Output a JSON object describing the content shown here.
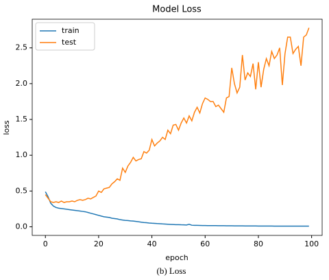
{
  "chart_data": {
    "type": "line",
    "title": "Model Loss",
    "xlabel": "epoch",
    "ylabel": "loss",
    "caption": "(b) Loss",
    "x": [
      0,
      1,
      2,
      3,
      4,
      5,
      6,
      7,
      8,
      9,
      10,
      11,
      12,
      13,
      14,
      15,
      16,
      17,
      18,
      19,
      20,
      21,
      22,
      23,
      24,
      25,
      26,
      27,
      28,
      29,
      30,
      31,
      32,
      33,
      34,
      35,
      36,
      37,
      38,
      39,
      40,
      41,
      42,
      43,
      44,
      45,
      46,
      47,
      48,
      49,
      50,
      51,
      52,
      53,
      54,
      55,
      56,
      57,
      58,
      59,
      60,
      61,
      62,
      63,
      64,
      65,
      66,
      67,
      68,
      69,
      70,
      71,
      72,
      73,
      74,
      75,
      76,
      77,
      78,
      79,
      80,
      81,
      82,
      83,
      84,
      85,
      86,
      87,
      88,
      89,
      90,
      91,
      92,
      93,
      94,
      95,
      96,
      97,
      98,
      99
    ],
    "series": [
      {
        "name": "train",
        "color": "#1f77b4",
        "values": [
          0.49,
          0.42,
          0.33,
          0.29,
          0.27,
          0.26,
          0.255,
          0.25,
          0.245,
          0.24,
          0.235,
          0.23,
          0.225,
          0.22,
          0.215,
          0.21,
          0.2,
          0.19,
          0.18,
          0.17,
          0.16,
          0.15,
          0.14,
          0.135,
          0.13,
          0.12,
          0.115,
          0.11,
          0.1,
          0.095,
          0.09,
          0.087,
          0.083,
          0.08,
          0.075,
          0.07,
          0.065,
          0.06,
          0.057,
          0.053,
          0.05,
          0.048,
          0.045,
          0.043,
          0.04,
          0.038,
          0.036,
          0.034,
          0.032,
          0.03,
          0.03,
          0.028,
          0.027,
          0.025,
          0.035,
          0.022,
          0.02,
          0.02,
          0.019,
          0.018,
          0.018,
          0.017,
          0.017,
          0.016,
          0.016,
          0.015,
          0.015,
          0.015,
          0.014,
          0.014,
          0.014,
          0.013,
          0.013,
          0.013,
          0.013,
          0.012,
          0.012,
          0.012,
          0.012,
          0.012,
          0.011,
          0.011,
          0.011,
          0.011,
          0.011,
          0.011,
          0.01,
          0.01,
          0.01,
          0.01,
          0.01,
          0.01,
          0.01,
          0.01,
          0.01,
          0.01,
          0.01,
          0.01,
          0.01,
          0.01
        ]
      },
      {
        "name": "test",
        "color": "#ff7f0e",
        "values": [
          0.45,
          0.4,
          0.35,
          0.34,
          0.35,
          0.34,
          0.36,
          0.34,
          0.35,
          0.35,
          0.36,
          0.35,
          0.37,
          0.38,
          0.37,
          0.38,
          0.4,
          0.39,
          0.41,
          0.43,
          0.5,
          0.48,
          0.53,
          0.54,
          0.55,
          0.6,
          0.63,
          0.67,
          0.65,
          0.82,
          0.76,
          0.85,
          0.9,
          0.97,
          0.92,
          0.94,
          0.95,
          1.05,
          1.03,
          1.07,
          1.22,
          1.13,
          1.17,
          1.2,
          1.25,
          1.22,
          1.35,
          1.3,
          1.42,
          1.43,
          1.35,
          1.45,
          1.52,
          1.45,
          1.55,
          1.48,
          1.6,
          1.67,
          1.59,
          1.72,
          1.8,
          1.78,
          1.75,
          1.75,
          1.68,
          1.7,
          1.65,
          1.6,
          1.8,
          1.82,
          2.22,
          2.0,
          1.87,
          1.95,
          2.4,
          2.05,
          2.15,
          2.1,
          2.28,
          1.92,
          2.3,
          1.95,
          2.2,
          2.35,
          2.25,
          2.45,
          2.35,
          2.4,
          2.5,
          1.98,
          2.42,
          2.65,
          2.65,
          2.42,
          2.48,
          2.52,
          2.25,
          2.65,
          2.68,
          2.78
        ]
      }
    ],
    "xlim": [
      -4.95,
      103.95
    ],
    "ylim": [
      -0.12,
      2.9
    ],
    "xticks": [
      0,
      20,
      40,
      60,
      80,
      100
    ],
    "yticks": [
      {
        "value": 0,
        "label": "0.0"
      },
      0.5,
      {
        "value": 1,
        "label": "1.0"
      },
      1.5,
      {
        "value": 2,
        "label": "2.0"
      },
      2.5
    ],
    "legend": "upper left",
    "grid": false
  }
}
